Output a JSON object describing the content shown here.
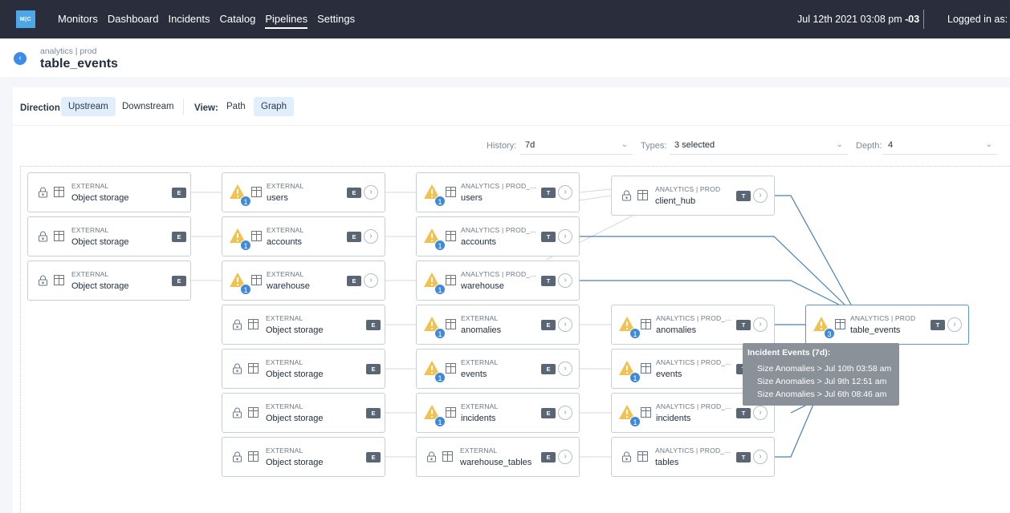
{
  "app": {
    "logo": "M|C"
  },
  "nav": {
    "items": [
      "Monitors",
      "Dashboard",
      "Incidents",
      "Catalog",
      "Pipelines",
      "Settings"
    ],
    "active": "Pipelines",
    "datetime": "Jul 12th 2021 03:08 pm",
    "tz": "-03",
    "logged_in": "Logged in as: He"
  },
  "header": {
    "breadcrumb": "analytics | prod",
    "title": "table_events"
  },
  "toolbar": {
    "direction_label": "Direction:",
    "upstream": "Upstream",
    "downstream": "Downstream",
    "view_label": "View:",
    "path": "Path",
    "graph": "Graph"
  },
  "filters": {
    "history_label": "History:",
    "history_value": "7d",
    "types_label": "Types:",
    "types_value": "3 selected",
    "depth_label": "Depth:",
    "depth_value": "4"
  },
  "nodes": [
    {
      "type": "EXTERNAL",
      "name": "Object storage",
      "tag": "E"
    },
    {
      "type": "EXTERNAL",
      "name": "Object storage",
      "tag": "E"
    },
    {
      "type": "EXTERNAL",
      "name": "Object storage",
      "tag": "E"
    },
    {
      "type": "EXTERNAL",
      "name": "users",
      "tag": "E",
      "badge": "1"
    },
    {
      "type": "EXTERNAL",
      "name": "accounts",
      "tag": "E",
      "badge": "1"
    },
    {
      "type": "EXTERNAL",
      "name": "warehouse",
      "tag": "E",
      "badge": "1"
    },
    {
      "type": "EXTERNAL",
      "name": "Object storage",
      "tag": "E"
    },
    {
      "type": "EXTERNAL",
      "name": "Object storage",
      "tag": "E"
    },
    {
      "type": "EXTERNAL",
      "name": "Object storage",
      "tag": "E"
    },
    {
      "type": "EXTERNAL",
      "name": "Object storage",
      "tag": "E"
    },
    {
      "type": "ANALYTICS | PROD_...",
      "name": "users",
      "tag": "T",
      "badge": "1"
    },
    {
      "type": "ANALYTICS | PROD_...",
      "name": "accounts",
      "tag": "T",
      "badge": "1"
    },
    {
      "type": "ANALYTICS | PROD_...",
      "name": "warehouse",
      "tag": "T",
      "badge": "1"
    },
    {
      "type": "EXTERNAL",
      "name": "anomalies",
      "tag": "E",
      "badge": "1"
    },
    {
      "type": "EXTERNAL",
      "name": "events",
      "tag": "E",
      "badge": "1"
    },
    {
      "type": "EXTERNAL",
      "name": "incidents",
      "tag": "E",
      "badge": "1"
    },
    {
      "type": "EXTERNAL",
      "name": "warehouse_tables",
      "tag": "E"
    },
    {
      "type": "ANALYTICS | PROD",
      "name": "client_hub",
      "tag": "T"
    },
    {
      "type": "ANALYTICS | PROD_...",
      "name": "anomalies",
      "tag": "T",
      "badge": "1"
    },
    {
      "type": "ANALYTICS | PROD_...",
      "name": "events",
      "tag": "T",
      "badge": "1"
    },
    {
      "type": "ANALYTICS | PROD_...",
      "name": "incidents",
      "tag": "T",
      "badge": "1"
    },
    {
      "type": "ANALYTICS | PROD_...",
      "name": "tables",
      "tag": "T"
    },
    {
      "type": "ANALYTICS | PROD",
      "name": "table_events",
      "tag": "T",
      "badge": "3"
    }
  ],
  "tooltip": {
    "title": "Incident Events (7d):",
    "lines": [
      "Size Anomalies > Jul 10th 03:58 am",
      "Size Anomalies > Jul 9th 12:51 am",
      "Size Anomalies > Jul 6th 08:46 am"
    ]
  },
  "colors": {
    "nav_bg": "#2a2d3b",
    "accent": "#3d8be8",
    "warn": "#f2c14e",
    "edge": "#4a7fb0"
  }
}
